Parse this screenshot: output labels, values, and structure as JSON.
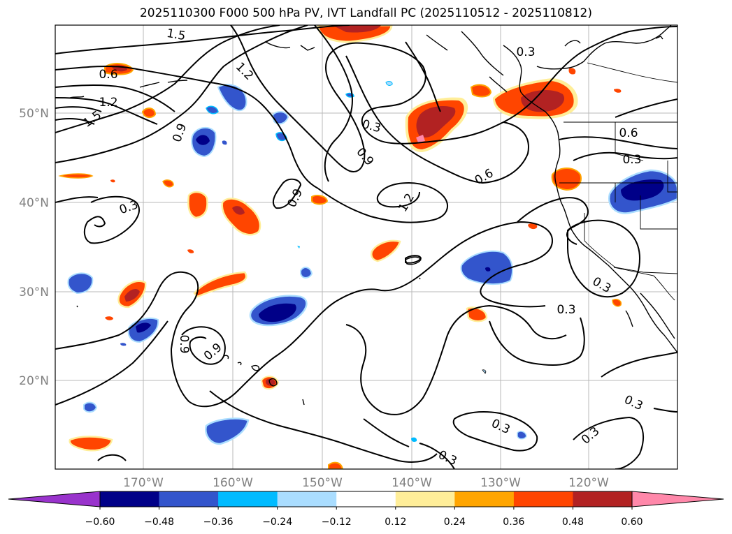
{
  "title": "2025110300 F000 500 hPa PV, IVT Landfall PC (2025110512 - 2025110812)",
  "map": {
    "lat_labels": [
      "50°N",
      "40°N",
      "30°N",
      "20°N"
    ],
    "lon_labels": [
      "170°W",
      "160°W",
      "150°W",
      "140°W",
      "130°W",
      "120°W"
    ],
    "contour_labels": [
      "1.5",
      "0.6",
      "1.2",
      "1.5",
      "1.2",
      "0.9",
      "0.3",
      "0.9",
      "0.3",
      "0.6",
      "0.6",
      "0.3",
      "0.9",
      "1.2",
      "0.3",
      "0.3",
      "0.3",
      "0.9",
      "0.9",
      "0.3",
      "0.3",
      "0.3",
      "0.3"
    ],
    "colors": {
      "neg_060": "#9933cc",
      "neg_048": "#000088",
      "neg_036": "#3355cc",
      "neg_024": "#00bbff",
      "neg_012": "#aaddff",
      "pos_012": "#ffee99",
      "pos_024": "#ffa500",
      "pos_036": "#ff4500",
      "pos_048": "#b22222",
      "pos_060": "#ff88aa"
    }
  },
  "colorbar": {
    "ticks": [
      "−0.60",
      "−0.48",
      "−0.36",
      "−0.24",
      "−0.12",
      "0.12",
      "0.24",
      "0.36",
      "0.48",
      "0.60"
    ],
    "bins": [
      {
        "from": "-inf",
        "to": "-0.60",
        "color": "#9933cc"
      },
      {
        "from": "-0.60",
        "to": "-0.48",
        "color": "#000088"
      },
      {
        "from": "-0.48",
        "to": "-0.36",
        "color": "#3355cc"
      },
      {
        "from": "-0.36",
        "to": "-0.24",
        "color": "#00bbff"
      },
      {
        "from": "-0.24",
        "to": "-0.12",
        "color": "#aaddff"
      },
      {
        "from": "-0.12",
        "to": "0.12",
        "color": "#ffffff"
      },
      {
        "from": "0.12",
        "to": "0.24",
        "color": "#ffee99"
      },
      {
        "from": "0.24",
        "to": "0.36",
        "color": "#ffa500"
      },
      {
        "from": "0.36",
        "to": "0.48",
        "color": "#ff4500"
      },
      {
        "from": "0.48",
        "to": "0.60",
        "color": "#b22222"
      },
      {
        "from": "0.60",
        "to": "inf",
        "color": "#ff88aa"
      }
    ]
  }
}
